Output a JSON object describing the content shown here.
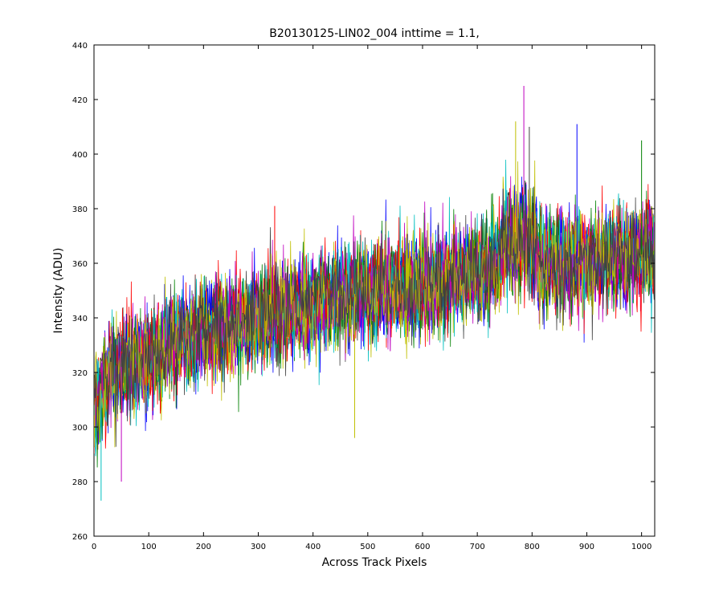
{
  "chart_data": {
    "type": "line",
    "title": "B20130125-LIN02_004 inttime = 1.1,",
    "xlabel": "Across Track Pixels",
    "ylabel": "Intensity (ADU)",
    "xlim": [
      0,
      1024
    ],
    "ylim": [
      260,
      440
    ],
    "xticks": [
      0,
      100,
      200,
      300,
      400,
      500,
      600,
      700,
      800,
      900,
      1000
    ],
    "yticks": [
      260,
      280,
      300,
      320,
      340,
      360,
      380,
      400,
      420,
      440
    ],
    "grid": false,
    "legend": "none",
    "series_colors": [
      "#0000ff",
      "#008000",
      "#ff0000",
      "#00bfbf",
      "#bf00bf",
      "#bfbf00",
      "#404040"
    ],
    "trend": {
      "x": [
        0,
        20,
        50,
        100,
        150,
        200,
        300,
        400,
        500,
        600,
        700,
        750,
        790,
        820,
        900,
        1024
      ],
      "y": [
        305,
        318,
        322,
        325,
        330,
        335,
        340,
        345,
        350,
        352,
        356,
        362,
        365,
        360,
        360,
        364
      ]
    },
    "noise_amplitude_adu": 17,
    "peaks": [
      {
        "x": 785,
        "y": 425
      },
      {
        "x": 770,
        "y": 412
      },
      {
        "x": 795,
        "y": 410
      },
      {
        "x": 882,
        "y": 411
      },
      {
        "x": 1000,
        "y": 405
      },
      {
        "x": 330,
        "y": 381
      },
      {
        "x": 13,
        "y": 273
      },
      {
        "x": 50,
        "y": 280
      },
      {
        "x": 476,
        "y": 296
      }
    ]
  }
}
